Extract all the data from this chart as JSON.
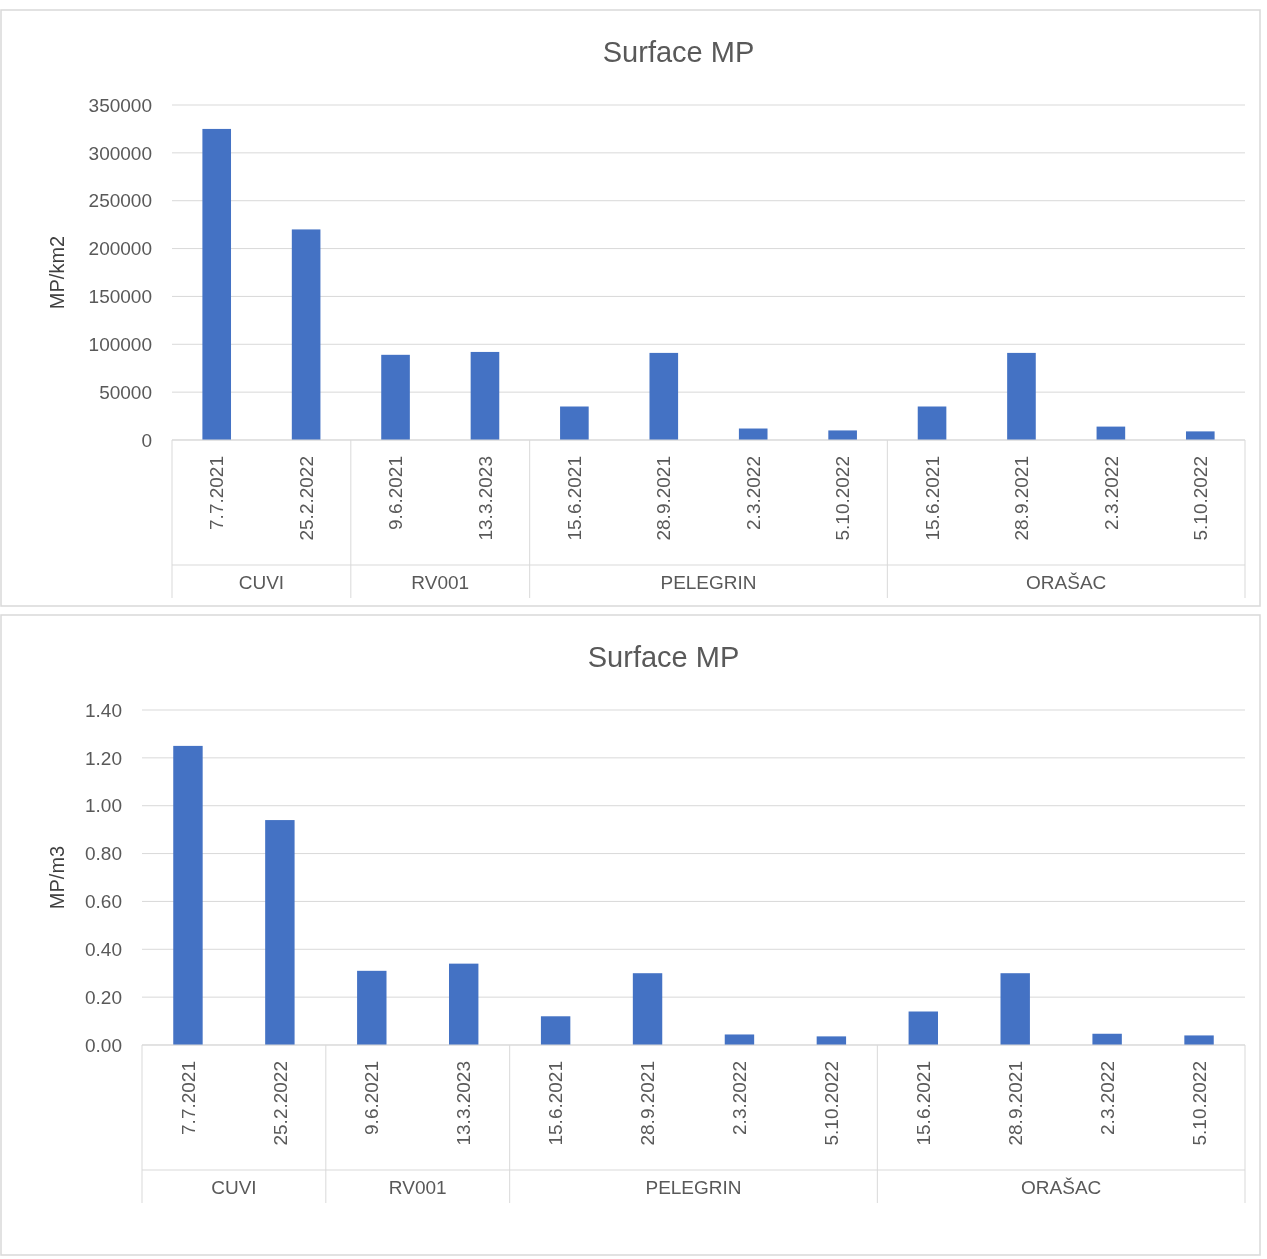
{
  "chart_data": [
    {
      "type": "bar",
      "title": "Surface MP",
      "ylabel": "MP/km2",
      "categories": [
        "7.7.2021",
        "25.2.2022",
        "9.6.2021",
        "13.3.2023",
        "15.6.2021",
        "28.9.2021",
        "2.3.2022",
        "5.10.2022",
        "15.6.2021",
        "28.9.2021",
        "2.3.2022",
        "5.10.2022"
      ],
      "values": [
        325000,
        220000,
        89000,
        92000,
        35000,
        91000,
        12000,
        10000,
        35000,
        91000,
        14000,
        9000
      ],
      "color": "#4472c4",
      "ylim": [
        0,
        350000
      ],
      "yticks": [
        0,
        50000,
        100000,
        150000,
        200000,
        250000,
        300000,
        350000
      ],
      "grid": "y",
      "annotations": [
        "CUVI",
        "RV001",
        "PELEGRIN",
        "ORAŠAC"
      ]
    },
    {
      "type": "bar",
      "title": "Surface MP",
      "ylabel": "MP/m3",
      "categories": [
        "7.7.2021",
        "25.2.2022",
        "9.6.2021",
        "13.3.2023",
        "15.6.2021",
        "28.9.2021",
        "2.3.2022",
        "5.10.2022",
        "15.6.2021",
        "28.9.2021",
        "2.3.2022",
        "5.10.2022"
      ],
      "values": [
        1.25,
        0.94,
        0.31,
        0.34,
        0.12,
        0.3,
        0.044,
        0.036,
        0.14,
        0.3,
        0.047,
        0.04
      ],
      "color": "#4472c4",
      "ylim": [
        0,
        1.4
      ],
      "yticks": [
        {
          "value": 0,
          "label": "0.00"
        },
        {
          "value": 0.2,
          "label": "0.20"
        },
        {
          "value": 0.4,
          "label": "0.40"
        },
        {
          "value": 0.6,
          "label": "0.60"
        },
        {
          "value": 0.8,
          "label": "0.80"
        },
        {
          "value": 1,
          "label": "1.00"
        },
        {
          "value": 1.2,
          "label": "1.20"
        },
        {
          "value": 1.4,
          "label": "1.40"
        }
      ],
      "grid": "y",
      "annotations": [
        "CUVI",
        "RV001",
        "PELEGRIN",
        "ORAŠAC"
      ]
    }
  ]
}
